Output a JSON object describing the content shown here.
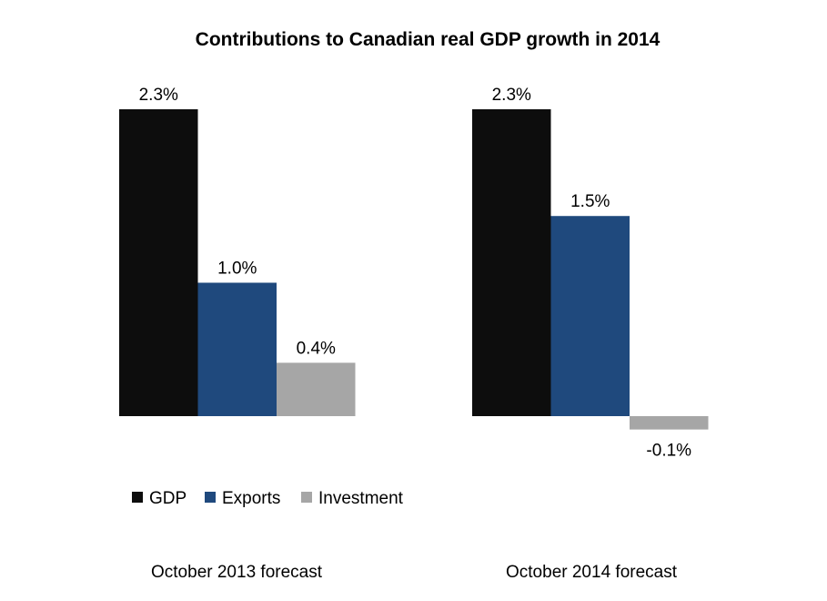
{
  "chart_data": {
    "type": "bar",
    "title": "Contributions to Canadian real GDP growth in 2014",
    "xlabel": "",
    "ylabel": "",
    "unit": "%",
    "grid": false,
    "legend_position": "bottom-left",
    "categories": [
      "October 2013 forecast",
      "October 2014 forecast"
    ],
    "series": [
      {
        "name": "GDP",
        "color": "#0d0d0d",
        "values": [
          2.3,
          2.3
        ],
        "labels": [
          "2.3%",
          "2.3%"
        ]
      },
      {
        "name": "Exports",
        "color": "#1f497d",
        "values": [
          1.0,
          1.5
        ],
        "labels": [
          "1.0%",
          "1.5%"
        ]
      },
      {
        "name": "Investment",
        "color": "#a6a6a6",
        "values": [
          0.4,
          -0.1
        ],
        "labels": [
          "0.4%",
          "-0.1%"
        ]
      }
    ],
    "ylim": [
      -0.1,
      2.3
    ]
  }
}
